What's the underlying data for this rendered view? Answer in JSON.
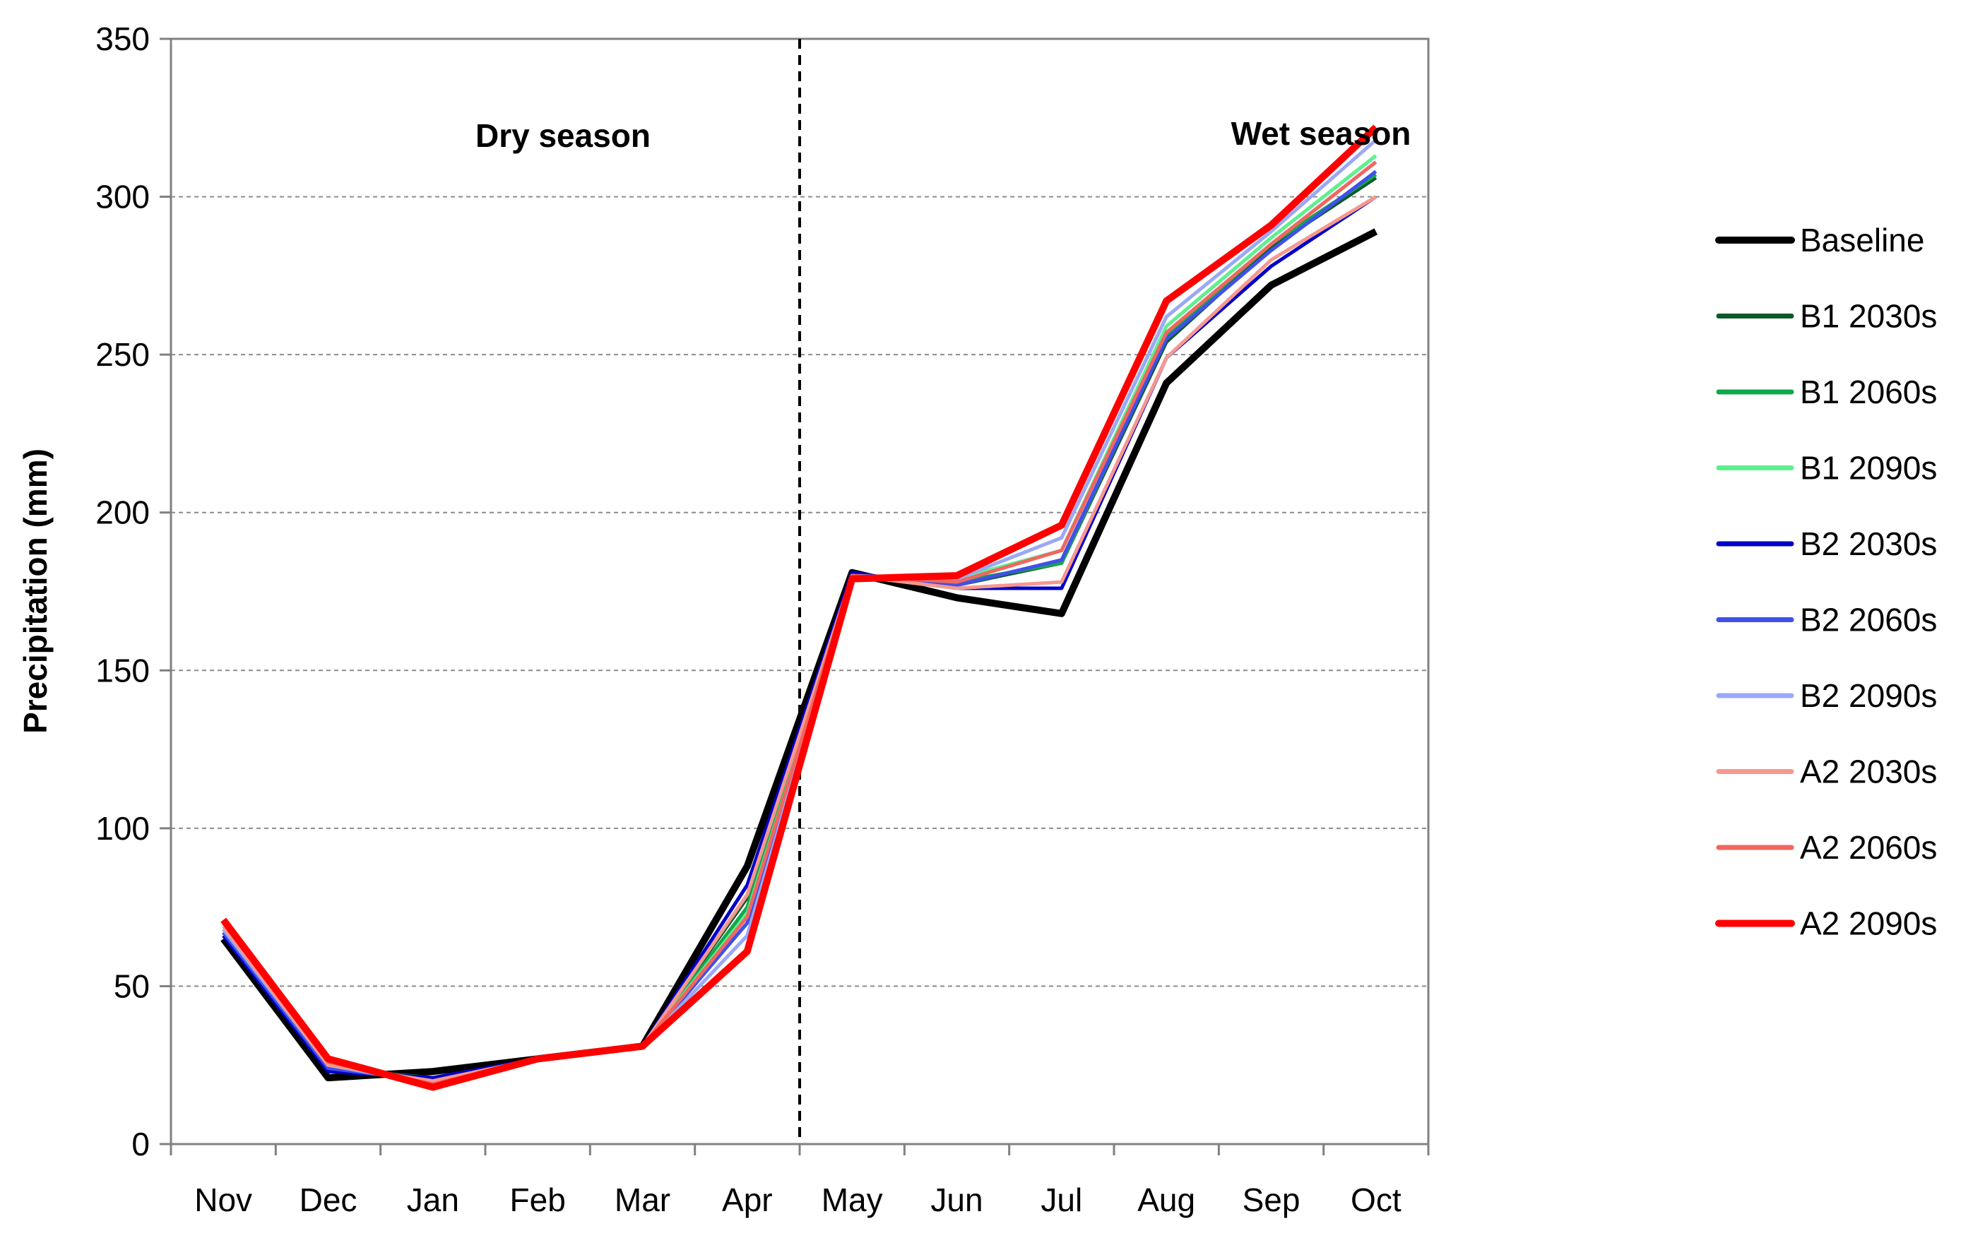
{
  "chart_data": {
    "type": "line",
    "title": "",
    "xlabel": "",
    "ylabel": "Precipitation (mm)",
    "ylim": [
      0,
      350
    ],
    "yticks": [
      0,
      50,
      100,
      150,
      200,
      250,
      300,
      350
    ],
    "grid": true,
    "legend_position": "right",
    "categories": [
      "Nov",
      "Dec",
      "Jan",
      "Feb",
      "Mar",
      "Apr",
      "May",
      "Jun",
      "Jul",
      "Aug",
      "Sep",
      "Oct"
    ],
    "annotations": {
      "dry_season": "Dry season",
      "wet_season": "Wet season",
      "divider_between": [
        "Apr",
        "May"
      ]
    },
    "series": [
      {
        "name": "Baseline",
        "color": "#000000",
        "values": [
          65,
          21,
          23,
          27,
          31,
          88,
          181,
          173,
          168,
          241,
          272,
          289
        ]
      },
      {
        "name": "B1 2030s",
        "color": "#0b5a2a",
        "values": [
          67,
          24,
          21,
          27,
          31,
          78,
          180,
          177,
          184,
          254,
          284,
          306
        ]
      },
      {
        "name": "B1 2060s",
        "color": "#10a84b",
        "values": [
          68,
          24,
          20,
          27,
          31,
          75,
          180,
          178,
          184,
          256,
          285,
          307
        ]
      },
      {
        "name": "B1 2090s",
        "color": "#5ef08e",
        "values": [
          69,
          25,
          20,
          27,
          31,
          73,
          179,
          179,
          188,
          259,
          287,
          313
        ]
      },
      {
        "name": "B2 2030s",
        "color": "#0000c8",
        "values": [
          66,
          23,
          21,
          27,
          31,
          82,
          181,
          176,
          176,
          249,
          278,
          300
        ]
      },
      {
        "name": "B2 2060s",
        "color": "#4050e8",
        "values": [
          67,
          24,
          20,
          27,
          31,
          70,
          180,
          177,
          185,
          255,
          283,
          308
        ]
      },
      {
        "name": "B2 2090s",
        "color": "#9aa8f5",
        "values": [
          68,
          25,
          19,
          27,
          31,
          66,
          180,
          179,
          192,
          262,
          289,
          318
        ]
      },
      {
        "name": "A2 2030s",
        "color": "#f5988f",
        "values": [
          69,
          25,
          20,
          27,
          31,
          79,
          180,
          176,
          178,
          249,
          280,
          300
        ]
      },
      {
        "name": "A2 2060s",
        "color": "#f06660",
        "values": [
          70,
          26,
          19,
          27,
          31,
          72,
          180,
          178,
          188,
          257,
          285,
          311
        ]
      },
      {
        "name": "A2 2090s",
        "color": "#ff0000",
        "values": [
          71,
          27,
          18,
          27,
          31,
          61,
          179,
          180,
          196,
          267,
          291,
          322
        ]
      }
    ]
  }
}
